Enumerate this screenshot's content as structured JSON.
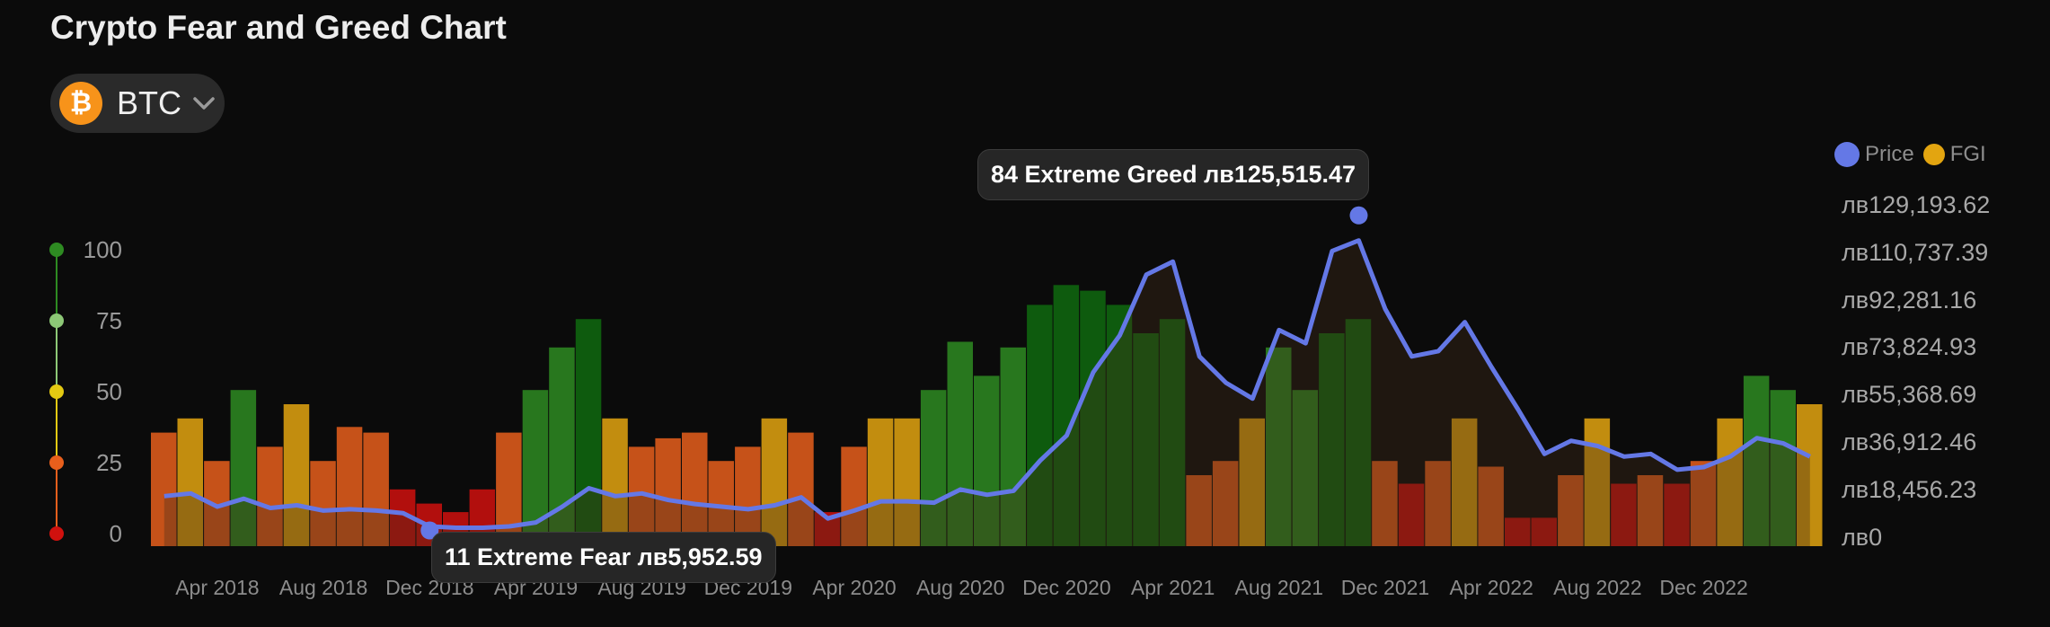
{
  "title": "Crypto Fear and Greed Chart",
  "asset_selector": {
    "icon": "bitcoin-icon",
    "label": "BTC",
    "icon_glyph": "₿"
  },
  "legend": {
    "price": "Price",
    "fgi": "FGI"
  },
  "colors": {
    "price": "#6478e6",
    "extreme_fear": "#d0110e",
    "fear": "#e85f1c",
    "neutral": "#e3a510",
    "greed": "#2e8b22",
    "extreme_greed": "#0f6a0f"
  },
  "tooltips": {
    "high": "84 Extreme Greed лв125,515.47",
    "low": "11 Extreme Fear лв5,952.59"
  },
  "chart_data": {
    "type": "bar",
    "fgi_axis": {
      "ticks": [
        "100",
        "75",
        "50",
        "25",
        "0"
      ],
      "ylim": [
        0,
        100
      ]
    },
    "price_axis": {
      "ticks": [
        "лв129,193.62",
        "лв110,737.39",
        "лв92,281.16",
        "лв73,824.93",
        "лв55,368.69",
        "лв36,912.46",
        "лв18,456.23",
        "лв0"
      ],
      "ylim": [
        0,
        129193.62
      ]
    },
    "x_ticks": [
      "Apr 2018",
      "Aug 2018",
      "Dec 2018",
      "Apr 2019",
      "Aug 2019",
      "Dec 2019",
      "Apr 2020",
      "Aug 2020",
      "Dec 2020",
      "Apr 2021",
      "Aug 2021",
      "Dec 2021",
      "Apr 2022",
      "Aug 2022",
      "Dec 2022"
    ],
    "x_range_months": [
      "Feb 2018",
      "Apr 2023"
    ],
    "price_series": {
      "name": "Price",
      "points": [
        [
          "Feb 2018",
          19000
        ],
        [
          "Mar 2018",
          20000
        ],
        [
          "Apr 2018",
          15000
        ],
        [
          "May 2018",
          18000
        ],
        [
          "Jun 2018",
          14500
        ],
        [
          "Jul 2018",
          15500
        ],
        [
          "Aug 2018",
          13500
        ],
        [
          "Sep 2018",
          14000
        ],
        [
          "Oct 2018",
          13500
        ],
        [
          "Nov 2018",
          12500
        ],
        [
          "Dec 2018",
          7500
        ],
        [
          "Jan 2019",
          7000
        ],
        [
          "Feb 2019",
          7000
        ],
        [
          "Mar 2019",
          7500
        ],
        [
          "Apr 2019",
          9000
        ],
        [
          "May 2019",
          15000
        ],
        [
          "Jun 2019",
          22000
        ],
        [
          "Jul 2019",
          19000
        ],
        [
          "Aug 2019",
          20000
        ],
        [
          "Sep 2019",
          17500
        ],
        [
          "Oct 2019",
          16000
        ],
        [
          "Nov 2019",
          15000
        ],
        [
          "Dec 2019",
          14000
        ],
        [
          "Jan 2020",
          15500
        ],
        [
          "Feb 2020",
          18500
        ],
        [
          "Mar 2020",
          10500
        ],
        [
          "Apr 2020",
          13500
        ],
        [
          "May 2020",
          17000
        ],
        [
          "Jun 2020",
          17000
        ],
        [
          "Jul 2020",
          16500
        ],
        [
          "Aug 2020",
          21500
        ],
        [
          "Sep 2020",
          19500
        ],
        [
          "Oct 2020",
          21000
        ],
        [
          "Nov 2020",
          32500
        ],
        [
          "Dec 2020",
          42000
        ],
        [
          "Jan 2021",
          66000
        ],
        [
          "Feb 2021",
          80000
        ],
        [
          "Mar 2021",
          103000
        ],
        [
          "Apr 2021",
          108000
        ],
        [
          "May 2021",
          72000
        ],
        [
          "Jun 2021",
          62000
        ],
        [
          "Jul 2021",
          56000
        ],
        [
          "Aug 2021",
          82000
        ],
        [
          "Sep 2021",
          77000
        ],
        [
          "Oct 2021",
          112000
        ],
        [
          "Nov 2021",
          116000
        ],
        [
          "Dec 2021",
          90000
        ],
        [
          "Jan 2022",
          72000
        ],
        [
          "Feb 2022",
          74000
        ],
        [
          "Mar 2022",
          85000
        ],
        [
          "Apr 2022",
          68000
        ],
        [
          "May 2022",
          52000
        ],
        [
          "Jun 2022",
          35000
        ],
        [
          "Jul 2022",
          40000
        ],
        [
          "Aug 2022",
          38000
        ],
        [
          "Sep 2022",
          34000
        ],
        [
          "Oct 2022",
          35000
        ],
        [
          "Nov 2022",
          29000
        ],
        [
          "Dec 2022",
          30000
        ],
        [
          "Jan 2023",
          34000
        ],
        [
          "Feb 2023",
          41000
        ],
        [
          "Mar 2023",
          39000
        ],
        [
          "Apr 2023",
          34000
        ]
      ]
    },
    "fgi_series": {
      "name": "FGI",
      "values_monthly": [
        40,
        45,
        30,
        55,
        35,
        50,
        30,
        42,
        40,
        20,
        15,
        12,
        20,
        40,
        55,
        70,
        80,
        45,
        35,
        38,
        40,
        30,
        35,
        45,
        40,
        12,
        35,
        45,
        45,
        55,
        72,
        60,
        70,
        85,
        92,
        90,
        85,
        75,
        80,
        25,
        30,
        45,
        70,
        55,
        75,
        80,
        30,
        22,
        30,
        45,
        28,
        10,
        10,
        25,
        45,
        22,
        25,
        22,
        30,
        45,
        60,
        55,
        50
      ]
    },
    "annotations": [
      {
        "point": "high",
        "date": "Nov 2021",
        "fgi": 84,
        "label": "84 Extreme Greed",
        "price": 125515.47
      },
      {
        "point": "low",
        "date": "Dec 2018",
        "fgi": 11,
        "label": "11 Extreme Fear",
        "price": 5952.59
      }
    ]
  }
}
